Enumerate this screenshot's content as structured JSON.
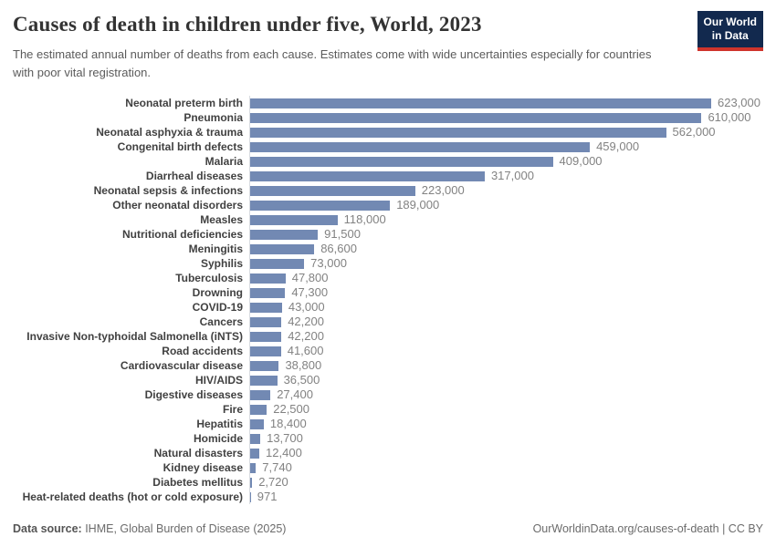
{
  "header": {
    "title": "Causes of death in children under five, World, 2023",
    "subtitle": "The estimated annual number of deaths from each cause. Estimates come with wide uncertainties especially for countries with poor vital registration.",
    "logo_line1": "Our World",
    "logo_line2": "in Data"
  },
  "chart_data": {
    "type": "bar",
    "orientation": "horizontal",
    "title": "Causes of death in children under five, World, 2023",
    "xlabel": "",
    "ylabel": "",
    "xlim": [
      0,
      623000
    ],
    "grid": false,
    "legend": "none",
    "value_label_position": "right-of-bar",
    "categories": [
      "Neonatal preterm birth",
      "Pneumonia",
      "Neonatal asphyxia & trauma",
      "Congenital birth defects",
      "Malaria",
      "Diarrheal diseases",
      "Neonatal sepsis & infections",
      "Other neonatal disorders",
      "Measles",
      "Nutritional deficiencies",
      "Meningitis",
      "Syphilis",
      "Tuberculosis",
      "Drowning",
      "COVID-19",
      "Cancers",
      "Invasive Non-typhoidal Salmonella (iNTS)",
      "Road accidents",
      "Cardiovascular disease",
      "HIV/AIDS",
      "Digestive diseases",
      "Fire",
      "Hepatitis",
      "Homicide",
      "Natural disasters",
      "Kidney disease",
      "Diabetes mellitus",
      "Heat-related deaths (hot or cold exposure)"
    ],
    "values": [
      623000,
      610000,
      562000,
      459000,
      409000,
      317000,
      223000,
      189000,
      118000,
      91500,
      86600,
      73000,
      47800,
      47300,
      43000,
      42200,
      42200,
      41600,
      38800,
      36500,
      27400,
      22500,
      18400,
      13700,
      12400,
      7740,
      2720,
      971
    ],
    "value_labels": [
      "623,000",
      "610,000",
      "562,000",
      "459,000",
      "409,000",
      "317,000",
      "223,000",
      "189,000",
      "118,000",
      "91,500",
      "86,600",
      "73,000",
      "47,800",
      "47,300",
      "43,000",
      "42,200",
      "42,200",
      "41,600",
      "38,800",
      "36,500",
      "27,400",
      "22,500",
      "18,400",
      "13,700",
      "12,400",
      "7,740",
      "2,720",
      "971"
    ]
  },
  "colors": {
    "bar": "#7289b3",
    "axis_line": "#d9dce1",
    "logo_background": "#12294e",
    "logo_accent": "#cf342c"
  },
  "footer": {
    "source_prefix": "Data source:",
    "source_text": " IHME, Global Burden of Disease (2025)",
    "attribution": "OurWorldinData.org/causes-of-death | CC BY"
  }
}
